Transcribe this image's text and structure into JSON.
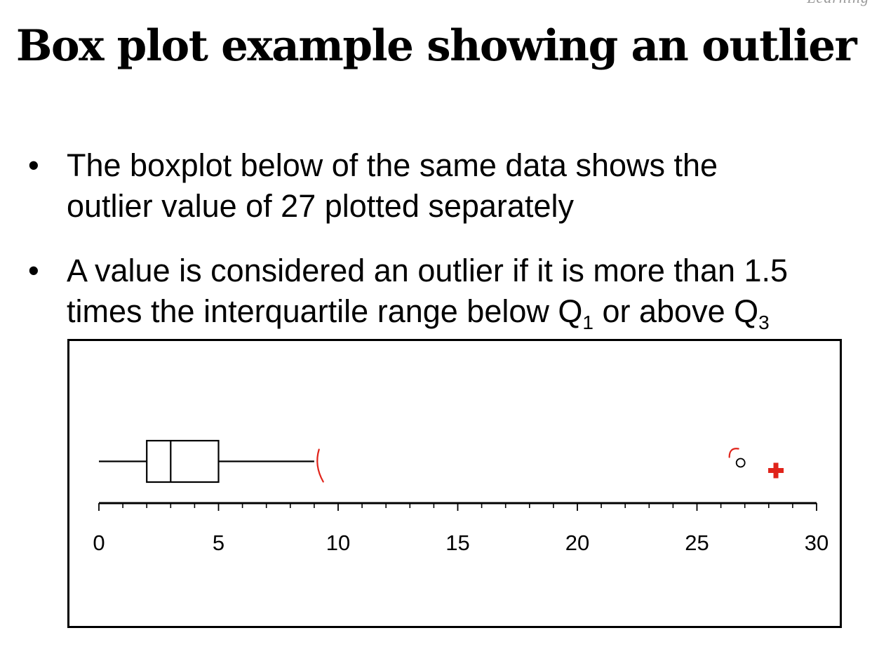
{
  "corner_text": "Learning",
  "title": "Box plot example showing an outlier",
  "bullets": {
    "b1_line1": "The boxplot below of the same data shows the",
    "b1_line2": "outlier value of 27 plotted separately",
    "b2_line1": "A value is considered an outlier if it is more than 1.5",
    "b2_line2_pre": "times the interquartile range below Q",
    "b2_sub1": "1",
    "b2_mid": " or above Q",
    "b2_sub2": "3",
    "bullet_char": "•"
  },
  "chart_data": {
    "type": "boxplot",
    "orientation": "horizontal",
    "whisker_low": 0,
    "q1": 2,
    "median": 3,
    "q3": 5,
    "whisker_high": 9,
    "outliers": [
      27
    ],
    "x_ticks": [
      0,
      5,
      10,
      15,
      20,
      25,
      30
    ],
    "x_minor_step": 1,
    "xlim": [
      0,
      30
    ],
    "grid": false,
    "annotations": {
      "color": "#e0231a",
      "handwritten_whisker_end": 9.2,
      "handwritten_mark_near_outlier": 26.5,
      "cross_marker": 28.3
    },
    "axis_color": "#000000"
  }
}
